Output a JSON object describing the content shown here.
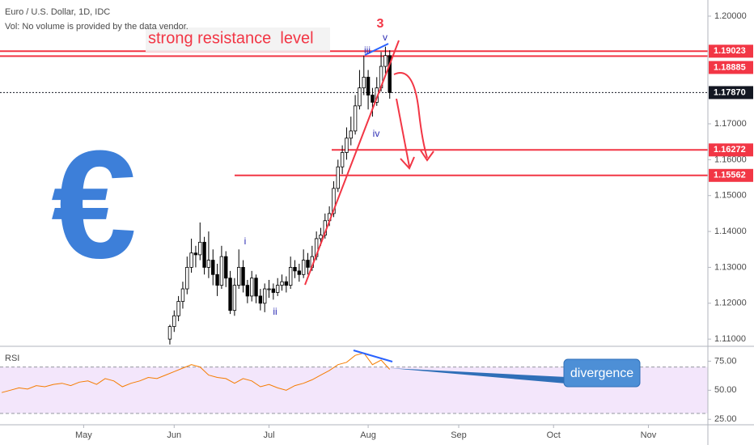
{
  "chart_data": {
    "type": "candlestick",
    "title": "Euro / U.S. Dollar, 1D, IDC",
    "subtitle": "Vol: No volume is provided by the data vendor.",
    "open": [
      1.11,
      1.1135,
      1.1165,
      1.1205,
      1.124,
      1.13,
      1.134,
      1.1335,
      1.137,
      1.13,
      1.132,
      1.128,
      1.125,
      1.133,
      1.127,
      1.118,
      1.125,
      1.13,
      1.125,
      1.122,
      1.127,
      1.122,
      1.12,
      1.124,
      1.124,
      1.123,
      1.125,
      1.126,
      1.125,
      1.13,
      1.129,
      1.128,
      1.132,
      1.13,
      1.133,
      1.138,
      1.139,
      1.143,
      1.145,
      1.152,
      1.158,
      1.162,
      1.166,
      1.168,
      1.175,
      1.18,
      1.183,
      1.178,
      1.176,
      1.18,
      1.186,
      1.189
    ],
    "high": [
      1.114,
      1.118,
      1.122,
      1.126,
      1.133,
      1.138,
      1.136,
      1.1425,
      1.1385,
      1.14,
      1.135,
      1.131,
      1.136,
      1.1345,
      1.129,
      1.127,
      1.135,
      1.132,
      1.1265,
      1.129,
      1.128,
      1.124,
      1.1255,
      1.1265,
      1.1255,
      1.127,
      1.128,
      1.1275,
      1.133,
      1.132,
      1.131,
      1.135,
      1.134,
      1.136,
      1.14,
      1.141,
      1.145,
      1.147,
      1.154,
      1.16,
      1.164,
      1.169,
      1.172,
      1.178,
      1.185,
      1.189,
      1.185,
      1.18,
      1.183,
      1.19,
      1.1915,
      1.1905
    ],
    "low": [
      1.1085,
      1.112,
      1.115,
      1.1185,
      1.1225,
      1.1285,
      1.13,
      1.132,
      1.128,
      1.127,
      1.125,
      1.122,
      1.124,
      1.1245,
      1.117,
      1.1165,
      1.124,
      1.123,
      1.12,
      1.1205,
      1.12,
      1.118,
      1.1175,
      1.1215,
      1.121,
      1.122,
      1.1235,
      1.123,
      1.124,
      1.127,
      1.126,
      1.127,
      1.128,
      1.129,
      1.132,
      1.136,
      1.138,
      1.1415,
      1.144,
      1.151,
      1.156,
      1.16,
      1.164,
      1.167,
      1.174,
      1.178,
      1.174,
      1.172,
      1.175,
      1.179,
      1.184,
      1.177
    ],
    "close": [
      1.1135,
      1.1165,
      1.1205,
      1.124,
      1.13,
      1.134,
      1.1335,
      1.137,
      1.13,
      1.132,
      1.128,
      1.125,
      1.133,
      1.127,
      1.118,
      1.125,
      1.13,
      1.125,
      1.122,
      1.127,
      1.122,
      1.12,
      1.124,
      1.124,
      1.123,
      1.125,
      1.126,
      1.125,
      1.13,
      1.129,
      1.128,
      1.132,
      1.13,
      1.133,
      1.138,
      1.139,
      1.143,
      1.145,
      1.152,
      1.158,
      1.162,
      1.166,
      1.168,
      1.175,
      1.18,
      1.183,
      1.178,
      1.176,
      1.18,
      1.186,
      1.189,
      1.1787
    ],
    "up_color": "#ffffff",
    "down_color": "#000000",
    "ylim": [
      1.108,
      1.2045
    ],
    "yticks": [
      {
        "value": 1.2,
        "label": "1.20000"
      },
      {
        "value": 1.17,
        "label": "1.17000"
      },
      {
        "value": 1.16,
        "label": "1.16000"
      },
      {
        "value": 1.15,
        "label": "1.15000"
      },
      {
        "value": 1.14,
        "label": "1.14000"
      },
      {
        "value": 1.13,
        "label": "1.13000"
      },
      {
        "value": 1.12,
        "label": "1.12000"
      },
      {
        "value": 1.11,
        "label": "1.11000"
      }
    ],
    "xlim": [
      -39.4,
      124.8
    ],
    "xticks": [
      {
        "value": -20,
        "label": "May"
      },
      {
        "value": 1,
        "label": "Jun"
      },
      {
        "value": 23,
        "label": "Jul"
      },
      {
        "value": 46,
        "label": "Aug"
      },
      {
        "value": 67,
        "label": "Sep"
      },
      {
        "value": 89,
        "label": "Oct"
      },
      {
        "value": 111,
        "label": "Nov"
      }
    ],
    "grid": false,
    "price_levels": [
      {
        "value": 1.19023,
        "color": "#f23645"
      },
      {
        "value": 1.18885,
        "color": "#f23645"
      },
      {
        "value": 1.1787,
        "label": "1.17870",
        "color": "#131722"
      },
      {
        "value": 1.16272,
        "color": "#f23645"
      },
      {
        "value": 1.15562,
        "color": "#f23645"
      }
    ],
    "rsi": {
      "name": "RSI",
      "color": "#f57c00",
      "x": [
        -39,
        -37,
        -35,
        -33,
        -31,
        -29,
        -27,
        -25,
        -23,
        -21,
        -19,
        -17,
        -15,
        -13,
        -11,
        -9,
        -7,
        -5,
        -3,
        -1,
        1,
        3,
        5,
        7,
        9,
        11,
        13,
        15,
        17,
        19,
        21,
        23,
        25,
        27,
        29,
        31,
        33,
        35,
        37,
        39,
        41,
        43,
        45,
        47,
        49,
        51
      ],
      "values": [
        48,
        50,
        52,
        51,
        54,
        53,
        55,
        56,
        54,
        57,
        58,
        55,
        60,
        58,
        53,
        56,
        58,
        61,
        60,
        63,
        66,
        69,
        72,
        70,
        63,
        61,
        60,
        56,
        60,
        58,
        53,
        55,
        52,
        50,
        54,
        56,
        59,
        63,
        67,
        72,
        74,
        80,
        82,
        72,
        76,
        68
      ],
      "ylim": [
        20.3,
        87.8
      ],
      "yticks": [
        {
          "value": 75,
          "label": "75.00"
        },
        {
          "value": 50,
          "label": "50.00"
        },
        {
          "value": 25,
          "label": "25.00"
        }
      ],
      "bands": [
        70,
        30
      ],
      "band_color": "#f3e6fb"
    },
    "annotations": {
      "resistance": "strong resistance  level",
      "wave_3": "3",
      "wave_i": "i",
      "wave_ii": "ii",
      "wave_iii": "iii",
      "wave_iv": "iv",
      "wave_v": "v",
      "divergence": "divergence",
      "currency": "€"
    }
  }
}
